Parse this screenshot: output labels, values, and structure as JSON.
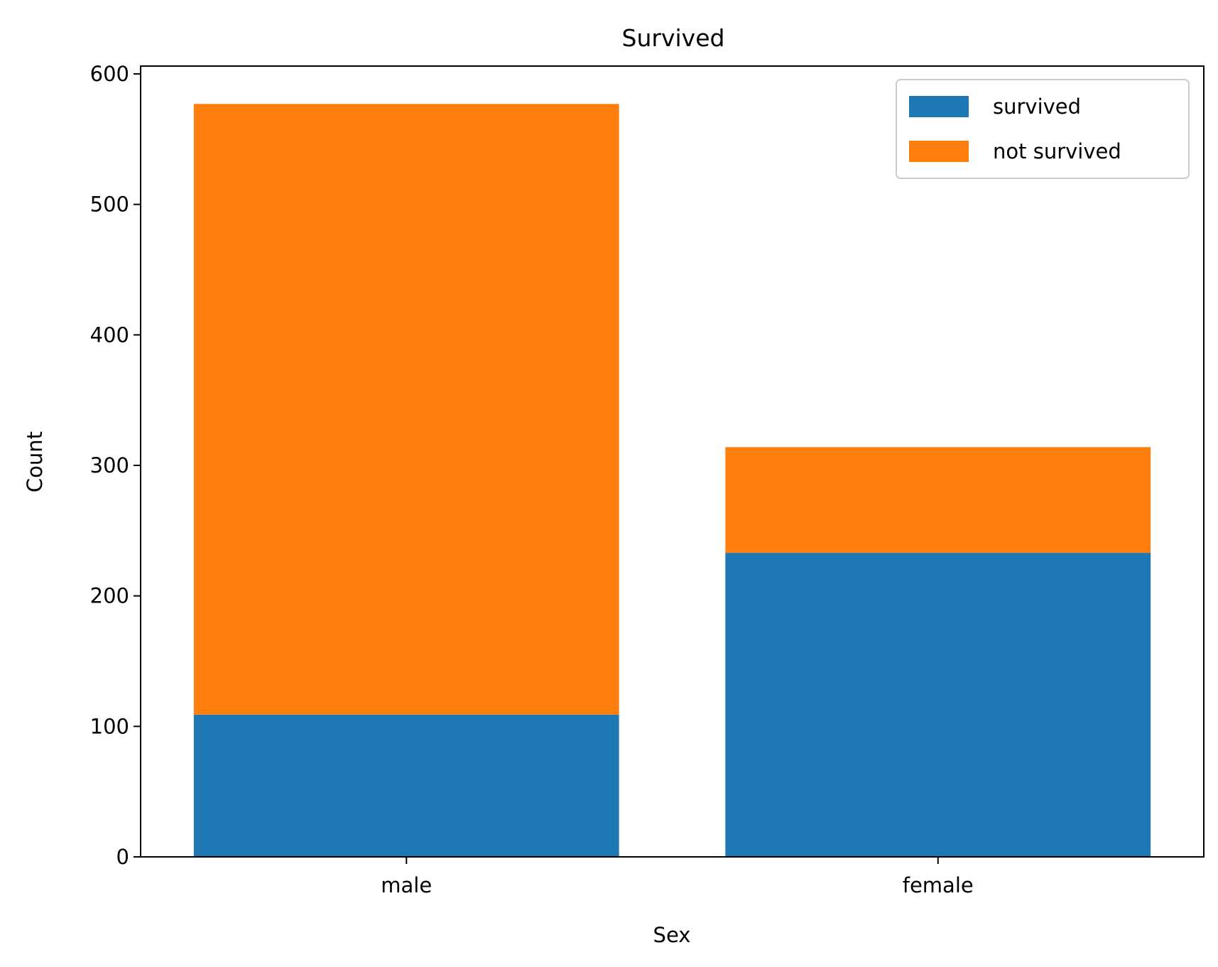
{
  "chart_data": {
    "type": "bar",
    "stacked": true,
    "title": "Survived",
    "xlabel": "Sex",
    "ylabel": "Count",
    "categories": [
      "male",
      "female"
    ],
    "series": [
      {
        "name": "survived",
        "values": [
          109,
          233
        ],
        "color": "#1f77b4"
      },
      {
        "name": "not survived",
        "values": [
          468,
          81
        ],
        "color": "#ff7f0e"
      }
    ],
    "ylim": [
      0,
      606
    ],
    "yticks": [
      0,
      100,
      200,
      300,
      400,
      500,
      600
    ],
    "grid": false,
    "legend": "top-right"
  }
}
